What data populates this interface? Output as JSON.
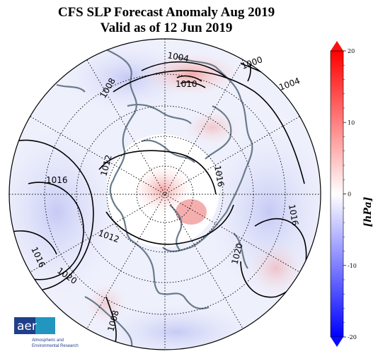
{
  "title": {
    "line1": "CFS SLP Forecast Anomaly Aug 2019",
    "line2": "Valid as of 12 Jun 2019"
  },
  "colorbar": {
    "label": "[hPa]",
    "ticks": [
      {
        "value": 20,
        "label": "20"
      },
      {
        "value": 10,
        "label": "10"
      },
      {
        "value": 0,
        "label": "0"
      },
      {
        "value": -10,
        "label": "-10"
      },
      {
        "value": -20,
        "label": "-20"
      }
    ],
    "min": -20,
    "max": 20,
    "low_color": "#0000ff",
    "mid_color": "#ffffff",
    "high_color": "#ff0000"
  },
  "contour_labels": [
    {
      "text": "1004"
    },
    {
      "text": "1000"
    },
    {
      "text": "1004"
    },
    {
      "text": "1008"
    },
    {
      "text": "1016"
    },
    {
      "text": "1012"
    },
    {
      "text": "1012"
    },
    {
      "text": "1016"
    },
    {
      "text": "1020"
    },
    {
      "text": "1016"
    },
    {
      "text": "1020"
    },
    {
      "text": "1016"
    },
    {
      "text": "1008"
    },
    {
      "text": "1010"
    }
  ],
  "logo": {
    "text": "aer",
    "line1": "Atmospheric and",
    "line2": "Environmental Research",
    "brand_color": "#1f3f8a",
    "accent_color": "#23a6c8"
  }
}
